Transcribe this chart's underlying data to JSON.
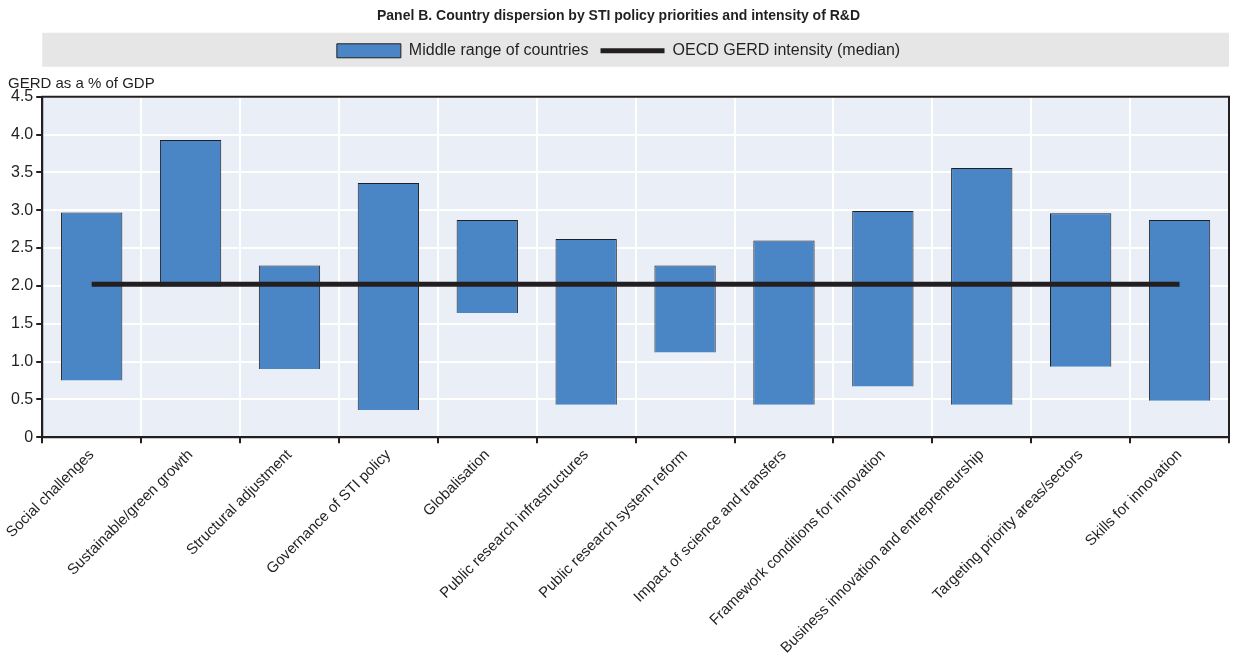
{
  "chart_data": {
    "type": "bar",
    "title": "Panel B. Country dispersion by STI policy priorities and intensity of R&D",
    "ylabel": "GERD as a % of GDP",
    "categories": [
      "Social challenges",
      "Sustainable/green growth",
      "Structural adjustment",
      "Governance of STI policy",
      "Globalisation",
      "Public research infrastructures",
      "Public research system reform",
      "Impact of science and transfers",
      "Framework conditions for innovation",
      "Business innovation and entrepreneurship",
      "Targeting priority areas/sectors",
      "Skills for innovation"
    ],
    "series": [
      {
        "name": "Middle range of countries",
        "color": "#4a86c5",
        "base": [
          0.75,
          1.99,
          0.9,
          0.36,
          1.64,
          0.43,
          1.12,
          0.43,
          0.67,
          0.43,
          0.93,
          0.48
        ],
        "values": [
          2.22,
          1.94,
          1.37,
          3.0,
          1.23,
          2.19,
          1.15,
          2.17,
          2.32,
          3.13,
          2.03,
          2.39
        ]
      },
      {
        "name": "OECD GERD intensity (median)",
        "type": "line",
        "color": "#231f20",
        "values": [
          2.02,
          2.02,
          2.02,
          2.02,
          2.02,
          2.02,
          2.02,
          2.02,
          2.02,
          2.02,
          2.02,
          2.02
        ]
      }
    ],
    "ylim": [
      0,
      4.5
    ],
    "yticks": [
      0,
      0.5,
      {
        "value": 1,
        "label": "1.0"
      },
      1.5,
      {
        "value": 2,
        "label": "2.0"
      },
      2.5,
      {
        "value": 3,
        "label": "3.0"
      },
      3.5,
      {
        "value": 4,
        "label": "4.0"
      },
      4.5
    ],
    "grid": true,
    "legend": "top",
    "marker": "none"
  }
}
